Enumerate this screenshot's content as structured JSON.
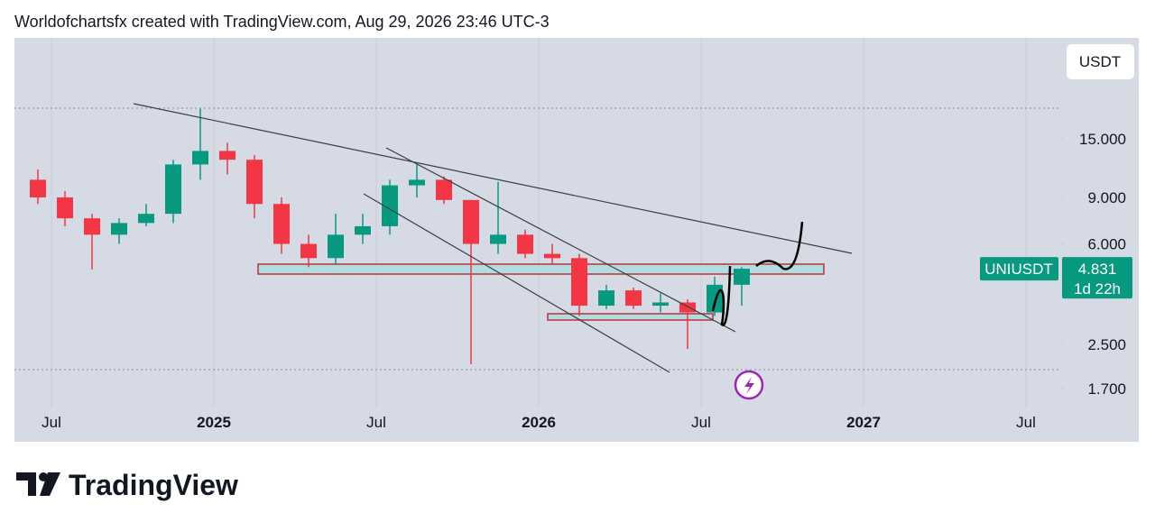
{
  "header": {
    "title": "Worldofchartsfx created with TradingView.com, Aug 29, 2026 23:46 UTC-3"
  },
  "footer": {
    "brand": "TradingView"
  },
  "chart_data": {
    "type": "candlestick",
    "currency": "USDT",
    "symbol": "UNIUSDT",
    "countdown": "1d 22h",
    "last_price": 4.831,
    "x": [
      "2024-06",
      "2024-07",
      "2024-08",
      "2024-09",
      "2024-10",
      "2024-11",
      "2024-12",
      "2025-01",
      "2025-02",
      "2025-03",
      "2025-04",
      "2025-05",
      "2025-06",
      "2025-07",
      "2025-08",
      "2025-09",
      "2025-10",
      "2025-11",
      "2025-12",
      "2026-01",
      "2026-02",
      "2026-03",
      "2026-04",
      "2026-05",
      "2026-06",
      "2026-07",
      "2026-08"
    ],
    "open": [
      10.5,
      9.0,
      7.5,
      6.5,
      7.2,
      7.8,
      12.0,
      13.5,
      12.5,
      8.5,
      6.0,
      5.3,
      6.5,
      7.0,
      10.0,
      10.5,
      8.8,
      6.0,
      6.5,
      5.5,
      5.3,
      3.5,
      4.0,
      3.5,
      3.6,
      3.3,
      4.2
    ],
    "high": [
      11.5,
      9.5,
      7.8,
      7.5,
      8.5,
      12.5,
      19.5,
      14.5,
      13.0,
      9.0,
      6.5,
      7.8,
      7.8,
      10.5,
      12.0,
      10.8,
      8.8,
      10.3,
      6.8,
      6.0,
      5.5,
      4.2,
      4.1,
      3.9,
      3.7,
      4.5,
      4.9
    ],
    "low": [
      8.5,
      7.0,
      4.8,
      6.0,
      7.0,
      7.2,
      10.5,
      11.0,
      7.5,
      5.5,
      4.9,
      5.0,
      6.0,
      6.5,
      9.0,
      8.5,
      2.1,
      5.5,
      5.3,
      5.0,
      3.2,
      3.4,
      3.4,
      3.3,
      2.4,
      3.2,
      3.5
    ],
    "close": [
      9.0,
      7.5,
      6.5,
      7.2,
      7.8,
      12.0,
      13.5,
      12.5,
      8.5,
      6.0,
      5.3,
      6.5,
      7.0,
      10.0,
      10.5,
      8.8,
      6.0,
      6.5,
      5.5,
      5.3,
      3.5,
      4.0,
      3.5,
      3.6,
      3.3,
      4.2,
      4.831
    ],
    "up_color": "#089981",
    "down_color": "#f23645",
    "log_scale": true,
    "ylim": [
      1.44,
      36.2
    ],
    "yticks": [
      {
        "value": 1.7,
        "label": "1.700"
      },
      {
        "value": 2.5,
        "label": "2.500"
      },
      {
        "value": 6,
        "label": "6.000"
      },
      {
        "value": 9,
        "label": "9.000"
      },
      {
        "value": 15,
        "label": "15.000"
      }
    ],
    "xlim": [
      "2024-05-20",
      "2027-08-09"
    ],
    "xticks": [
      {
        "value": "2024-07",
        "label": "Jul"
      },
      {
        "value": "2025-01",
        "label": "2025"
      },
      {
        "value": "2025-07",
        "label": "Jul"
      },
      {
        "value": "2026-01",
        "label": "2026"
      },
      {
        "value": "2026-07",
        "label": "Jul"
      },
      {
        "value": "2027-01",
        "label": "2027"
      },
      {
        "value": "2027-07",
        "label": "Jul"
      }
    ],
    "grid": true
  }
}
